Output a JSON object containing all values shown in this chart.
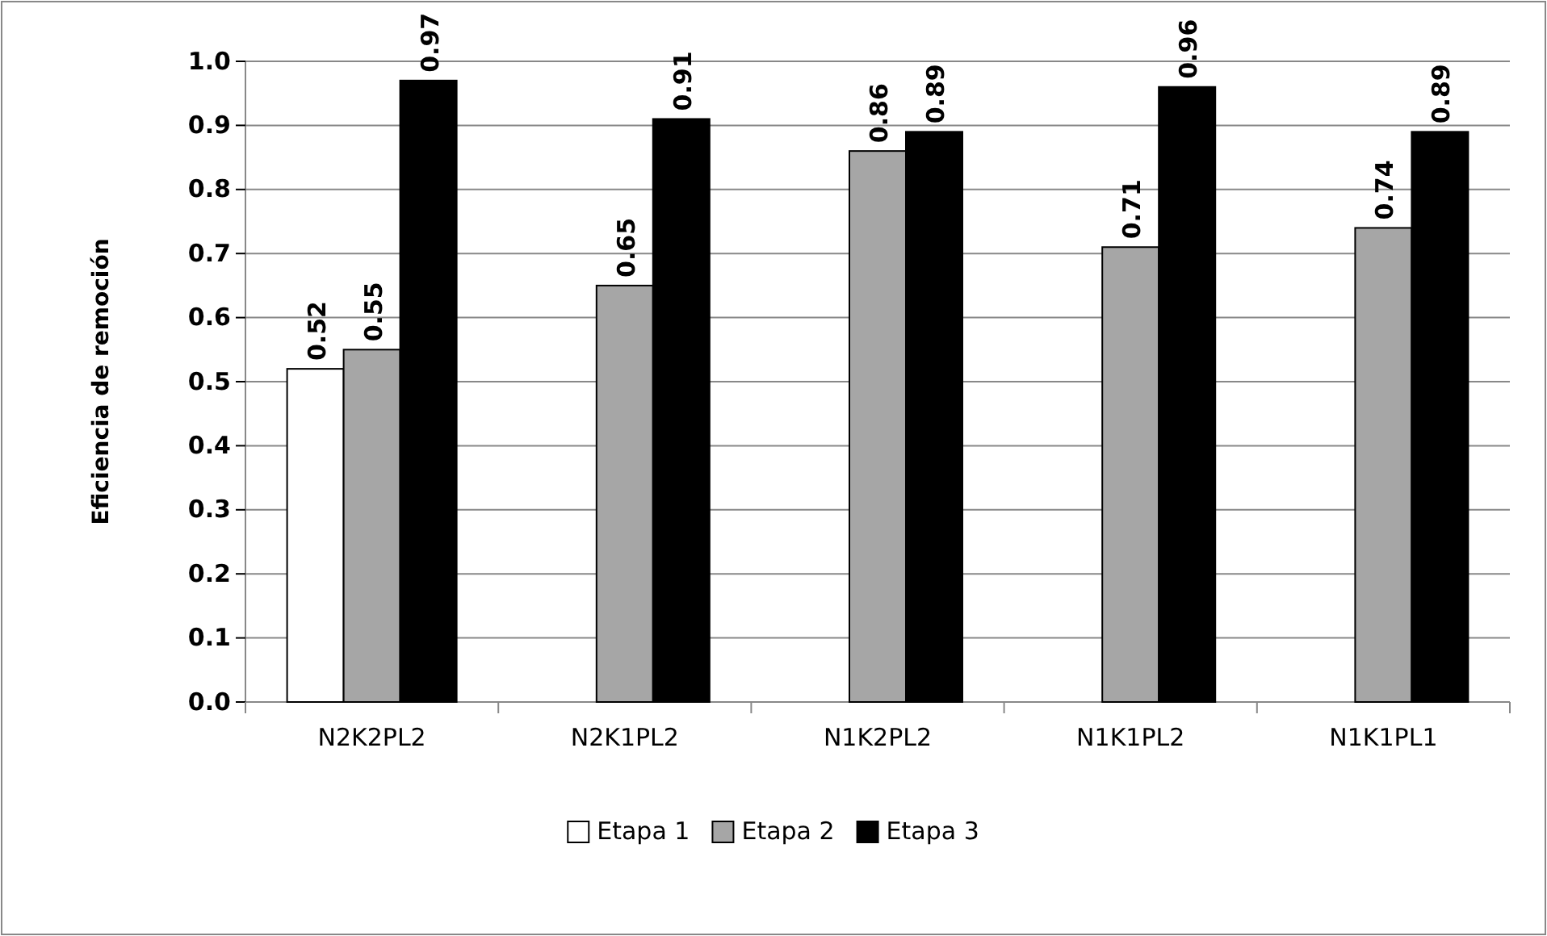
{
  "chart_data": {
    "type": "bar",
    "ylabel": "Eficiencia de remoción",
    "categories": [
      "N2K2PL2",
      "N2K1PL2",
      "N1K2PL2",
      "N1K1PL2",
      "N1K1PL1"
    ],
    "series": [
      {
        "name": "Etapa 1",
        "color": "#ffffff",
        "values": [
          0.52,
          null,
          null,
          null,
          null
        ]
      },
      {
        "name": "Etapa 2",
        "color": "#a6a6a6",
        "values": [
          0.55,
          0.65,
          0.86,
          0.71,
          0.74
        ]
      },
      {
        "name": "Etapa 3",
        "color": "#000000",
        "values": [
          0.97,
          0.91,
          0.89,
          0.96,
          0.89
        ]
      }
    ],
    "ylim": [
      0,
      1
    ],
    "yticks": [
      {
        "value": 0,
        "label": "0.0"
      },
      {
        "value": 0.1,
        "label": "0.1"
      },
      {
        "value": 0.2,
        "label": "0.2"
      },
      {
        "value": 0.3,
        "label": "0.3"
      },
      {
        "value": 0.4,
        "label": "0.4"
      },
      {
        "value": 0.5,
        "label": "0.5"
      },
      {
        "value": 0.6,
        "label": "0.6"
      },
      {
        "value": 0.7,
        "label": "0.7"
      },
      {
        "value": 0.8,
        "label": "0.8"
      },
      {
        "value": 0.9,
        "label": "0.9"
      },
      {
        "value": 1,
        "label": "1.0"
      }
    ],
    "grid": "y",
    "legend": "bottom",
    "data_labels": true
  }
}
